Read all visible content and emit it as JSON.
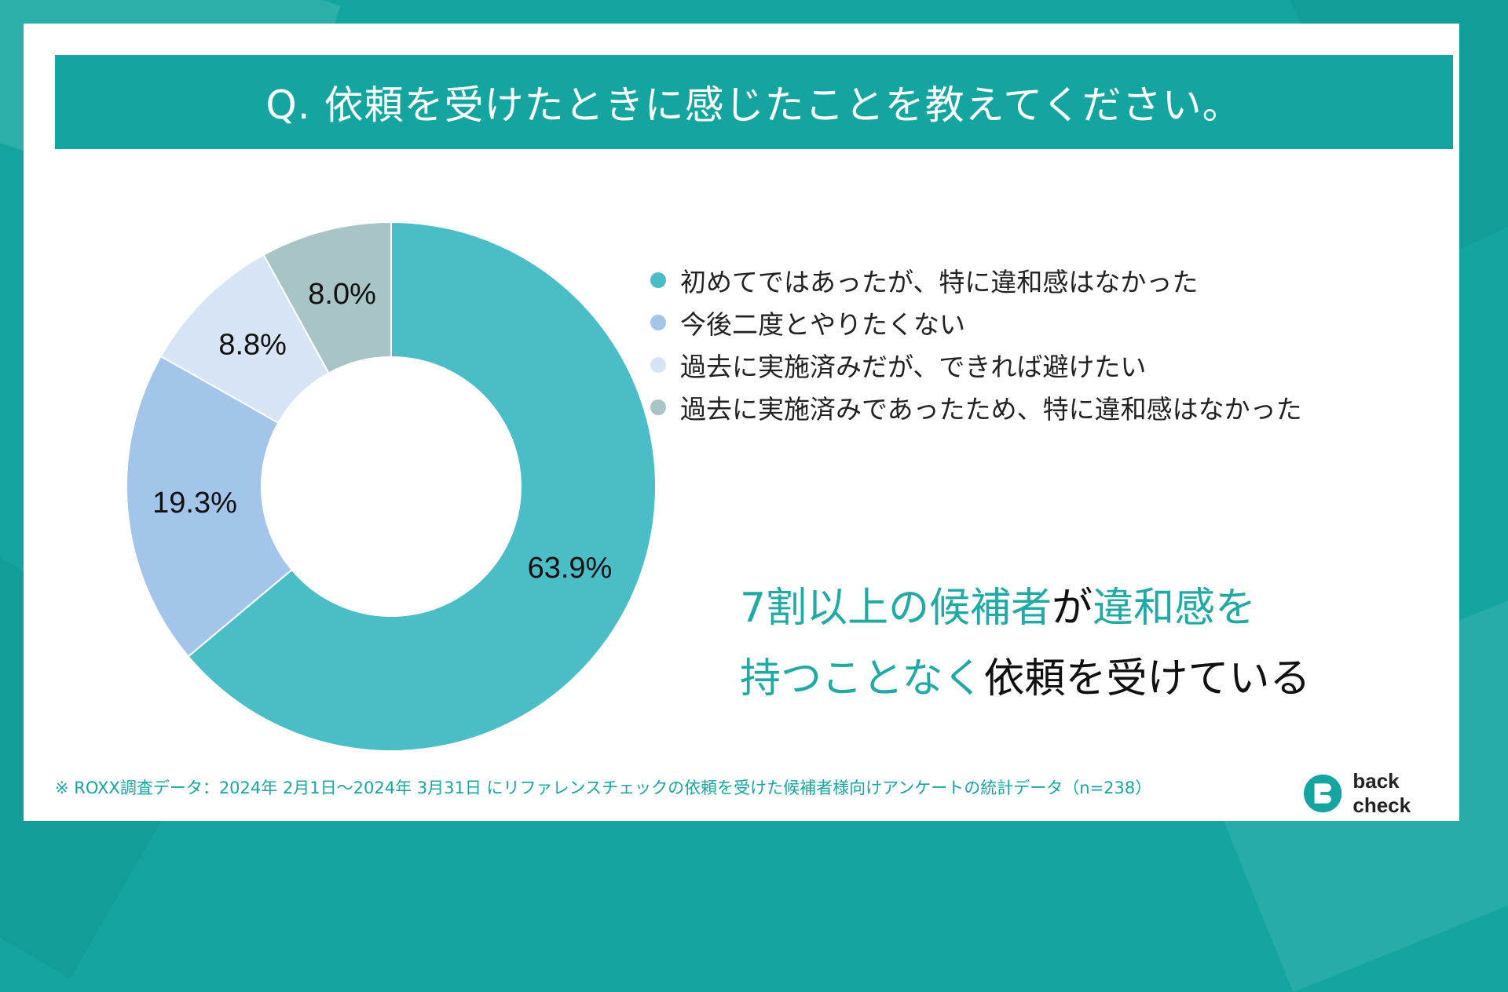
{
  "title": "Q. 依頼を受けたときに感じたことを教えてください。",
  "chart_data": {
    "type": "pie",
    "donut": true,
    "categories": [
      "初めてではあったが、特に違和感はなかった",
      "今後二度とやりたくない",
      "過去に実施済みだが、できれば避けたい",
      "過去に実施済みであったため、特に違和感はなかった"
    ],
    "values": [
      63.9,
      19.3,
      8.8,
      8.0
    ],
    "labels": [
      "63.9%",
      "19.3%",
      "8.8%",
      "8.0%"
    ],
    "colors": [
      "#4bbdc6",
      "#a3c5ea",
      "#d6e4f5",
      "#a8c4c5"
    ],
    "legend_position": "right"
  },
  "highlight": {
    "line1": [
      {
        "text": "7割以上の候補者",
        "accent": true
      },
      {
        "text": "が",
        "accent": false
      },
      {
        "text": "違和感を",
        "accent": true
      }
    ],
    "line2": [
      {
        "text": "持つことなく",
        "accent": true
      },
      {
        "text": "依頼を受けている",
        "accent": false
      }
    ]
  },
  "footnote": "※ ROXX調査データ：2024年 2月1日〜2024年 3月31日 にリファレンスチェックの依頼を受けた候補者様向けアンケートの統計データ（n=238）",
  "logo": {
    "text": "back check",
    "icon": "back-check-logo-icon"
  },
  "colors": {
    "brand": "#15a5a0",
    "accent_text": "#21a9a5"
  }
}
